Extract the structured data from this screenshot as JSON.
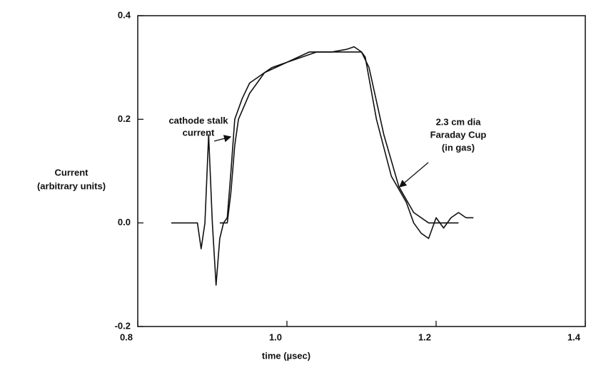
{
  "chart_data": {
    "type": "line",
    "x_label": "time (µsec)",
    "y_label": [
      "Current",
      "(arbitrary units)"
    ],
    "annotations": [
      [
        "cathode stalk",
        "current"
      ],
      [
        "2.3 cm  dia",
        "Faraday Cup",
        "(in gas)"
      ]
    ],
    "xlim": [
      0.8,
      1.4
    ],
    "xticks": [
      0.8,
      {
        "value": 1.0,
        "label": "1.0"
      },
      1.2,
      1.4
    ],
    "ylim": [
      -0.2,
      0.4
    ],
    "yticks": [
      -0.2,
      {
        "value": 0,
        "label": "0.0"
      },
      0.2,
      0.4
    ],
    "series": [
      {
        "color": "#111111",
        "x": [
          0.845,
          0.88,
          0.885,
          0.89,
          0.895,
          0.9,
          0.905,
          0.91,
          0.915,
          0.92,
          0.925,
          0.93,
          0.94,
          0.95,
          0.97,
          1.0,
          1.03,
          1.06,
          1.09,
          1.1,
          1.11,
          1.13,
          1.15,
          1.17,
          1.19,
          1.21,
          1.23
        ],
        "values": [
          0,
          0,
          -0.05,
          0,
          0.17,
          0,
          -0.12,
          -0.03,
          0,
          0.01,
          0.1,
          0.2,
          0.24,
          0.27,
          0.29,
          0.31,
          0.33,
          0.33,
          0.33,
          0.33,
          0.3,
          0.17,
          0.07,
          0.02,
          0,
          0,
          0
        ]
      },
      {
        "color": "#111111",
        "x": [
          0.91,
          0.92,
          0.925,
          0.93,
          0.935,
          0.95,
          0.96,
          0.97,
          0.98,
          1.0,
          1.02,
          1.04,
          1.06,
          1.08,
          1.09,
          1.1,
          1.105,
          1.12,
          1.14,
          1.16,
          1.17,
          1.18,
          1.19,
          1.2,
          1.21,
          1.22,
          1.23,
          1.24,
          1.25
        ],
        "values": [
          0,
          0,
          0.06,
          0.15,
          0.2,
          0.25,
          0.27,
          0.29,
          0.3,
          0.31,
          0.32,
          0.33,
          0.33,
          0.335,
          0.34,
          0.33,
          0.32,
          0.2,
          0.09,
          0.04,
          0,
          -0.02,
          -0.03,
          0.01,
          -0.01,
          0.01,
          0.02,
          0.01,
          0.01
        ]
      }
    ]
  }
}
